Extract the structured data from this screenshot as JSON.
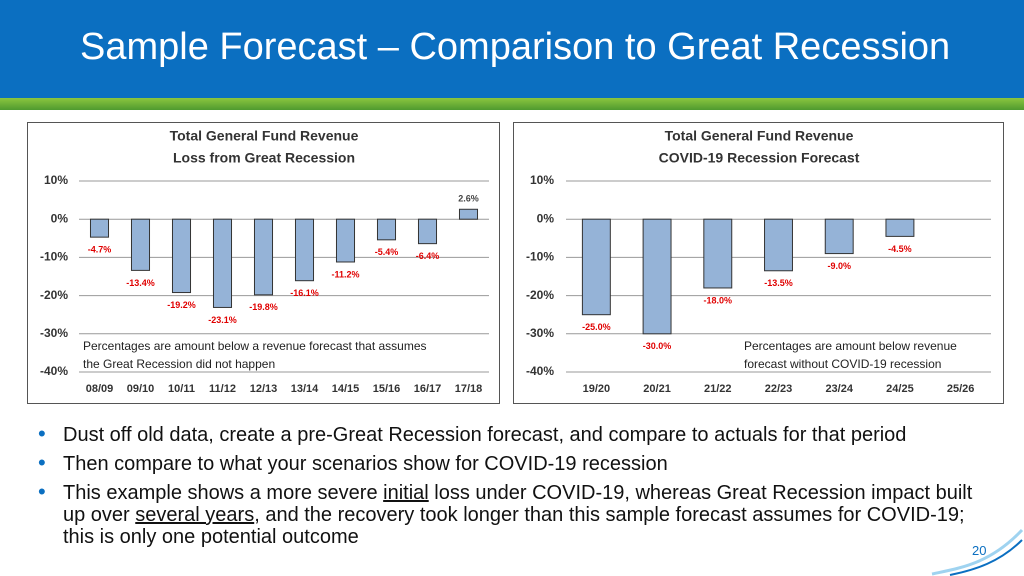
{
  "header": {
    "title": "Sample Forecast – Comparison to Great Recession"
  },
  "chart_data": [
    {
      "type": "bar",
      "title": "Total General Fund Revenue",
      "subtitle": "Loss from Great Recession",
      "categories": [
        "08/09",
        "09/10",
        "10/11",
        "11/12",
        "12/13",
        "13/14",
        "14/15",
        "15/16",
        "16/17",
        "17/18"
      ],
      "values": [
        -4.7,
        -13.4,
        -19.2,
        -23.1,
        -19.8,
        -16.1,
        -11.2,
        -5.4,
        -6.4,
        2.6
      ],
      "value_labels": [
        "-4.7%",
        "-13.4%",
        "-19.2%",
        "-23.1%",
        "-19.8%",
        "-16.1%",
        "-11.2%",
        "-5.4%",
        "-6.4%",
        "2.6%"
      ],
      "color": "#95b3d7",
      "ylim": [
        -40,
        10
      ],
      "yticks": [
        {
          "value": 10,
          "label": "10%"
        },
        {
          "value": 0,
          "label": "0%"
        },
        {
          "value": -10,
          "label": "-10%"
        },
        {
          "value": -20,
          "label": "-20%"
        },
        {
          "value": -30,
          "label": "-30%"
        },
        {
          "value": -40,
          "label": "-40%"
        }
      ],
      "grid": true,
      "note": [
        "Percentages are amount below a revenue forecast that assumes",
        "the Great Recession did not happen"
      ]
    },
    {
      "type": "bar",
      "title": "Total General Fund Revenue",
      "subtitle": "COVID-19 Recession Forecast",
      "categories": [
        "19/20",
        "20/21",
        "21/22",
        "22/23",
        "23/24",
        "24/25",
        "25/26"
      ],
      "values": [
        -25.0,
        -30.0,
        -18.0,
        -13.5,
        -9.0,
        -4.5,
        null
      ],
      "value_labels": [
        "-25.0%",
        "-30.0%",
        "-18.0%",
        "-13.5%",
        "-9.0%",
        "-4.5%",
        null
      ],
      "color": "#95b3d7",
      "ylim": [
        -40,
        10
      ],
      "yticks": [
        {
          "value": 10,
          "label": "10%"
        },
        {
          "value": 0,
          "label": "0%"
        },
        {
          "value": -10,
          "label": "-10%"
        },
        {
          "value": -20,
          "label": "-20%"
        },
        {
          "value": -30,
          "label": "-30%"
        },
        {
          "value": -40,
          "label": "-40%"
        }
      ],
      "grid": true,
      "note": [
        "Percentages are amount below revenue",
        "forecast without COVID-19 recession"
      ]
    }
  ],
  "bullets": [
    [
      "Dust off old data, create a pre-Great Recession forecast, and compare to actuals for that period"
    ],
    [
      "Then compare to what your scenarios show for COVID-19 recession"
    ],
    [
      "This example shows a more severe ",
      "initial",
      " loss under COVID-19, whereas Great Recession impact built up over ",
      "several years",
      ", and the recovery took longer than this sample forecast assumes for COVID-19; this is only one potential outcome"
    ]
  ],
  "page_number": "20"
}
